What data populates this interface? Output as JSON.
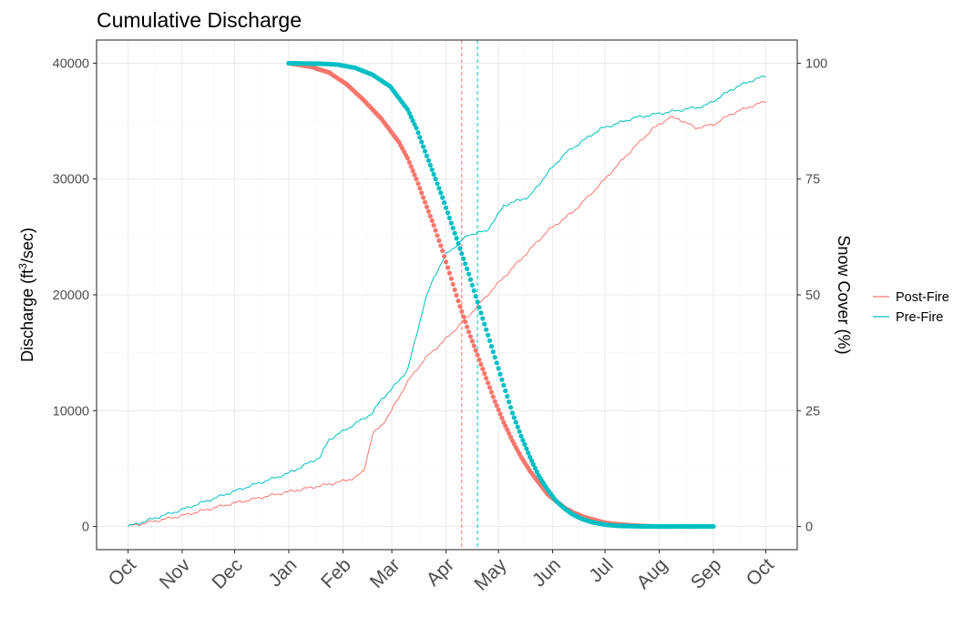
{
  "chart_data": {
    "type": "line",
    "title": "Cumulative Discharge",
    "ylabel_left": "Discharge (ft",
    "ylabel_left_sup": "3",
    "ylabel_left_tail": "/sec)",
    "ylabel_right": "Snow Cover (%)",
    "xlabel": "",
    "x_tick_labels": [
      "Oct",
      "Nov",
      "Dec",
      "Jan",
      "Feb",
      "Mar",
      "Apr",
      "May",
      "Jun",
      "Jul",
      "Aug",
      "Sep",
      "Oct"
    ],
    "x_tick_days": [
      0,
      31,
      61,
      92,
      123,
      151,
      182,
      212,
      243,
      273,
      304,
      335,
      365
    ],
    "xlim": [
      -18,
      383
    ],
    "ylim_left": [
      -2000,
      42000
    ],
    "y_left_ticks": [
      0,
      10000,
      20000,
      30000,
      40000
    ],
    "ylim_right": [
      -5,
      105
    ],
    "y_right_ticks": [
      0,
      25,
      50,
      75,
      100
    ],
    "grid": true,
    "legend": {
      "position": "right",
      "entries": [
        {
          "name": "Post-Fire",
          "color": "#F8766D"
        },
        {
          "name": "Pre-Fire",
          "color": "#00BFC4"
        }
      ]
    },
    "x_units": "days since Oct 1 (water year)",
    "discharge_series": [
      {
        "name": "Post-Fire",
        "color": "#F8766D",
        "x": [
          0,
          30,
          60,
          92,
          120,
          130,
          135,
          140,
          145,
          150,
          160,
          170,
          182,
          195,
          210,
          225,
          240,
          255,
          270,
          285,
          300,
          310,
          315,
          325,
          335,
          345,
          355,
          365
        ],
        "y": [
          0,
          900,
          2000,
          3000,
          3800,
          4200,
          4800,
          8000,
          8700,
          9800,
          12500,
          14500,
          16200,
          18200,
          20700,
          23100,
          25500,
          27200,
          29500,
          32000,
          34300,
          35300,
          35200,
          34400,
          34700,
          35600,
          36200,
          36700
        ]
      },
      {
        "name": "Pre-Fire",
        "color": "#00BFC4",
        "x": [
          0,
          30,
          60,
          92,
          110,
          115,
          125,
          140,
          145,
          150,
          160,
          165,
          170,
          175,
          182,
          195,
          205,
          210,
          215,
          230,
          240,
          250,
          270,
          290,
          310,
          330,
          338,
          345,
          355,
          365
        ],
        "y": [
          0,
          1400,
          3000,
          4600,
          6000,
          7500,
          8400,
          9800,
          11000,
          11700,
          13500,
          16500,
          19500,
          21500,
          23500,
          25200,
          25500,
          26500,
          27700,
          28500,
          30500,
          32200,
          34300,
          35300,
          35800,
          36300,
          37000,
          37700,
          38400,
          38900
        ]
      }
    ],
    "snow_series": [
      {
        "name": "Post-Fire",
        "color": "#F8766D",
        "x": [
          92,
          105,
          115,
          125,
          135,
          145,
          155,
          160,
          165,
          170,
          175,
          180,
          185,
          190,
          195,
          200,
          205,
          210,
          215,
          220,
          225,
          230,
          235,
          240,
          245,
          250,
          255,
          260,
          265,
          270,
          275,
          280,
          290,
          300
        ],
        "y": [
          100,
          99.2,
          98,
          95.5,
          92,
          88,
          83,
          79.5,
          75,
          70,
          65,
          59.5,
          53.5,
          47.5,
          42,
          37,
          32,
          27,
          22.5,
          18.5,
          15,
          12,
          9.5,
          7,
          5.5,
          4,
          3,
          2.2,
          1.6,
          1.1,
          0.7,
          0.5,
          0.2,
          0
        ]
      },
      {
        "name": "Pre-Fire",
        "color": "#00BFC4",
        "x": [
          92,
          110,
          120,
          130,
          140,
          150,
          160,
          165,
          170,
          175,
          180,
          185,
          190,
          195,
          200,
          205,
          210,
          215,
          220,
          225,
          230,
          235,
          240,
          245,
          250,
          255,
          260,
          265,
          270,
          275,
          280,
          290,
          300,
          320,
          335
        ],
        "y": [
          100,
          99.9,
          99.7,
          99,
          97.5,
          95,
          90,
          86,
          81,
          76,
          71,
          65.5,
          60,
          54.5,
          48.5,
          42.5,
          36.5,
          30.5,
          24.5,
          19.5,
          15,
          11,
          8,
          5.5,
          3.8,
          2.5,
          1.6,
          1,
          0.6,
          0.3,
          0.15,
          0.05,
          0,
          0,
          0
        ]
      }
    ],
    "vertical_lines": [
      {
        "name": "Post-Fire",
        "x": 191,
        "color": "#F8766D"
      },
      {
        "name": "Pre-Fire",
        "x": 200,
        "color": "#00BFC4"
      }
    ]
  }
}
